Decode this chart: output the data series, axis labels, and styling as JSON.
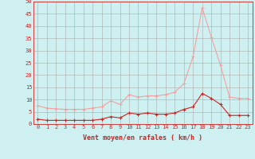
{
  "x": [
    0,
    1,
    2,
    3,
    4,
    5,
    6,
    7,
    8,
    9,
    10,
    11,
    12,
    13,
    14,
    15,
    16,
    17,
    18,
    19,
    20,
    21,
    22,
    23
  ],
  "y_rafales": [
    7.5,
    6.5,
    6.2,
    6.0,
    6.0,
    6.0,
    6.5,
    7.0,
    9.5,
    8.0,
    12.0,
    11.0,
    11.5,
    11.5,
    12.0,
    13.0,
    16.5,
    27.5,
    47.5,
    35.5,
    24.0,
    11.0,
    10.5,
    10.5
  ],
  "y_moyen": [
    2.0,
    1.5,
    1.5,
    1.5,
    1.5,
    1.5,
    1.5,
    2.0,
    3.0,
    2.5,
    4.5,
    4.0,
    4.5,
    4.0,
    4.0,
    4.5,
    6.0,
    7.0,
    12.5,
    10.5,
    8.0,
    3.5,
    3.5,
    3.5
  ],
  "color_rafales": "#f4a0a0",
  "color_moyen": "#cc2222",
  "bg_color": "#cff0f0",
  "grid_color": "#aaaaaa",
  "axis_color": "#cc2222",
  "xlabel": "Vent moyen/en rafales ( km/h )",
  "ylim": [
    0,
    50
  ],
  "yticks": [
    0,
    5,
    10,
    15,
    20,
    25,
    30,
    35,
    40,
    45,
    50
  ],
  "xticks": [
    0,
    1,
    2,
    3,
    4,
    5,
    6,
    7,
    8,
    9,
    10,
    11,
    12,
    13,
    14,
    15,
    16,
    17,
    18,
    19,
    20,
    21,
    22,
    23
  ],
  "marker": "+",
  "markersize": 3,
  "linewidth": 0.8,
  "tick_fontsize": 5,
  "xlabel_fontsize": 6
}
